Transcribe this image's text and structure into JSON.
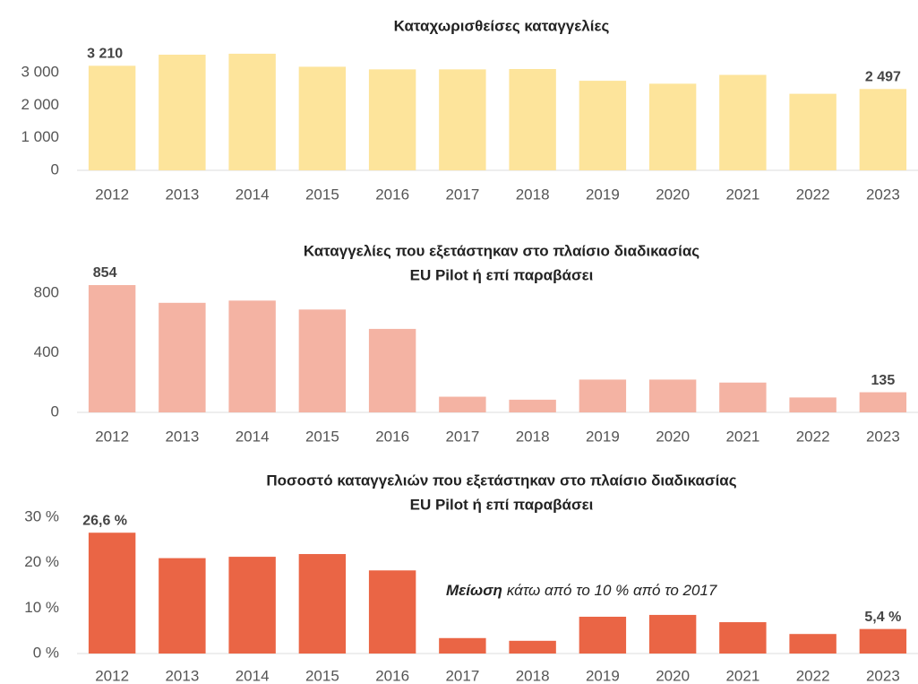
{
  "chart_data": [
    {
      "type": "bar",
      "title": [
        "Καταχωρισθείσες καταγγελίες"
      ],
      "categories": [
        "2012",
        "2013",
        "2014",
        "2015",
        "2016",
        "2017",
        "2018",
        "2019",
        "2020",
        "2021",
        "2022",
        "2023"
      ],
      "values": [
        3210,
        3550,
        3580,
        3180,
        3100,
        3100,
        3110,
        2750,
        2660,
        2930,
        2350,
        2497
      ],
      "value_labels": [
        "3 210",
        null,
        null,
        null,
        null,
        null,
        null,
        null,
        null,
        null,
        null,
        "2 497"
      ],
      "color": "#fde49b",
      "ylim": [
        0,
        3700
      ],
      "yticks": [
        0,
        {
          "value": 1000,
          "label": "1 000"
        },
        {
          "value": 2000,
          "label": "2 000"
        },
        {
          "value": 3000,
          "label": "3 000"
        }
      ]
    },
    {
      "type": "bar",
      "title": [
        "Καταγγελίες που εξετάστηκαν στο πλαίσιο διαδικασίας",
        "EU Pilot ή επί παραβάσει"
      ],
      "categories": [
        "2012",
        "2013",
        "2014",
        "2015",
        "2016",
        "2017",
        "2018",
        "2019",
        "2020",
        "2021",
        "2022",
        "2023"
      ],
      "values": [
        854,
        735,
        750,
        690,
        560,
        105,
        85,
        220,
        220,
        200,
        100,
        135
      ],
      "value_labels": [
        "854",
        null,
        null,
        null,
        null,
        null,
        null,
        null,
        null,
        null,
        null,
        "135"
      ],
      "color": "#f4b3a3",
      "ylim": [
        0,
        880
      ],
      "yticks": [
        0,
        400,
        800
      ]
    },
    {
      "type": "bar",
      "title": [
        "Ποσοστό καταγγελιών που εξετάστηκαν στο πλαίσιο διαδικασίας",
        "EU Pilot ή επί παραβάσει"
      ],
      "categories": [
        "2012",
        "2013",
        "2014",
        "2015",
        "2016",
        "2017",
        "2018",
        "2019",
        "2020",
        "2021",
        "2022",
        "2023"
      ],
      "values": [
        26.6,
        21,
        21.3,
        21.9,
        18.3,
        3.4,
        2.8,
        8.1,
        8.5,
        6.9,
        4.3,
        5.4
      ],
      "value_labels": [
        "26,6 %",
        null,
        null,
        null,
        null,
        null,
        null,
        null,
        null,
        null,
        null,
        "5,4 %"
      ],
      "color": "#ea6545",
      "ylim": [
        0,
        32
      ],
      "yticks": [
        {
          "value": 0,
          "label": "0 %"
        },
        {
          "value": 10,
          "label": "10 %"
        },
        {
          "value": 20,
          "label": "20 %"
        },
        {
          "value": 30,
          "label": "30 %"
        }
      ],
      "annotation": {
        "emphasis": "Μείωση",
        "text": "κάτω από το 10 % από το 2017"
      }
    }
  ]
}
